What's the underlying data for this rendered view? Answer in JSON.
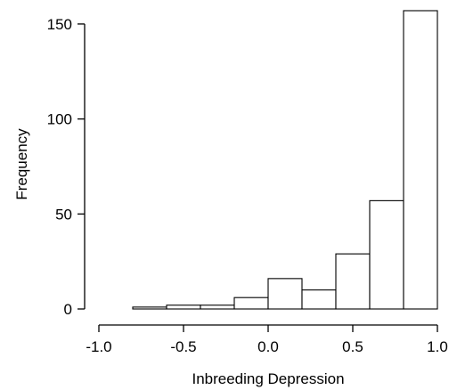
{
  "chart_data": {
    "type": "bar",
    "title": "",
    "xlabel": "Inbreeding Depression",
    "ylabel": "Frequency",
    "xlim": [
      -1.0,
      1.0
    ],
    "ylim": [
      0,
      157
    ],
    "x_ticks": [
      -1.0,
      -0.5,
      0.0,
      0.5,
      1.0
    ],
    "x_tick_labels": [
      "-1.0",
      "-0.5",
      "0.0",
      "0.5",
      "1.0"
    ],
    "y_ticks": [
      0,
      50,
      100,
      150
    ],
    "y_tick_labels": [
      "0",
      "50",
      "100",
      "150"
    ],
    "bin_edges": [
      -0.8,
      -0.6,
      -0.4,
      -0.2,
      0.0,
      0.2,
      0.4,
      0.6,
      0.8,
      1.0
    ],
    "values": [
      1,
      2,
      2,
      6,
      16,
      10,
      29,
      57,
      157
    ],
    "grid": false,
    "legend": "none"
  }
}
